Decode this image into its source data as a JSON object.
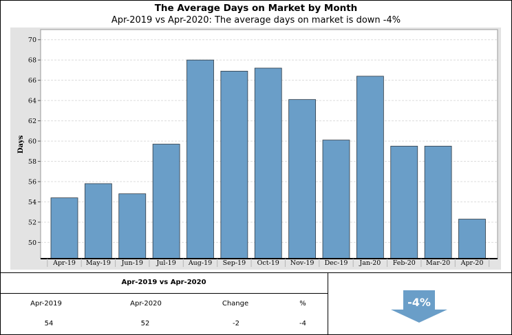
{
  "chart_data": {
    "type": "bar",
    "title": "The Average Days on Market by Month",
    "subtitle": "Apr-2019 vs Apr-2020: The average days on market is down -4%",
    "xlabel": "",
    "ylabel": "Days",
    "categories": [
      "Apr-19",
      "May-19",
      "Jun-19",
      "Jul-19",
      "Aug-19",
      "Sep-19",
      "Oct-19",
      "Nov-19",
      "Dec-19",
      "Jan-20",
      "Feb-20",
      "Mar-20",
      "Apr-20"
    ],
    "values": [
      54.4,
      55.8,
      54.8,
      59.7,
      68.0,
      66.9,
      67.2,
      64.1,
      60.1,
      66.4,
      59.5,
      59.5,
      52.3
    ],
    "ylim": [
      48.4,
      71
    ],
    "yticks": [
      50,
      52,
      54,
      56,
      58,
      60,
      62,
      64,
      66,
      68,
      70
    ],
    "grid": true,
    "bar_color": "#6a9ec8"
  },
  "summary": {
    "title": "Apr-2019 vs Apr-2020",
    "headers": [
      "Apr-2019",
      "Apr-2020",
      "Change",
      "%"
    ],
    "values": [
      "54",
      "52",
      "-2",
      "-4"
    ]
  },
  "badge": {
    "text": "-4%",
    "direction": "down",
    "icon": "down-arrow-icon",
    "color": "#6a9ec8"
  }
}
